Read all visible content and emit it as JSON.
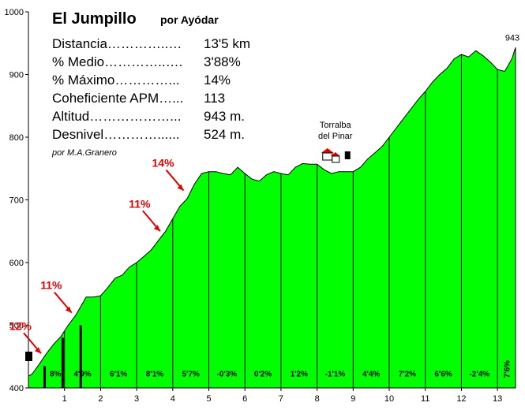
{
  "chart_data": {
    "type": "area",
    "title": "El Jumpillo",
    "subtitle": "por Ayódar",
    "author": "por M.A.Granero",
    "stats": [
      {
        "label": "Distancia…………..…",
        "value": "13'5 km"
      },
      {
        "label": "% Medio…………..…. ",
        "value": "3'88%"
      },
      {
        "label": "% Máximo…………...",
        "value": "14%"
      },
      {
        "label": "Coheficiente APM…...",
        "value": "113"
      },
      {
        "label": "Altitud………………...",
        "value": "943 m."
      },
      {
        "label": "Desnivel…………......",
        "value": "524 m."
      }
    ],
    "xlim": [
      0,
      13.5
    ],
    "ylim": [
      400,
      1000
    ],
    "x_ticks": [
      "1",
      "2",
      "3",
      "4",
      "5",
      "6",
      "7",
      "8",
      "9",
      "10",
      "11",
      "12",
      "13"
    ],
    "y_ticks": [
      "400",
      "500",
      "600",
      "700",
      "800",
      "900",
      "1000"
    ],
    "x": [
      0,
      0.1,
      0.3,
      0.5,
      0.7,
      0.9,
      1.1,
      1.3,
      1.5,
      1.6,
      1.8,
      2.0,
      2.2,
      2.4,
      2.6,
      2.8,
      3.0,
      3.2,
      3.4,
      3.6,
      3.8,
      4.0,
      4.2,
      4.4,
      4.6,
      4.8,
      5.0,
      5.2,
      5.4,
      5.6,
      5.8,
      6.0,
      6.2,
      6.4,
      6.6,
      6.8,
      7.0,
      7.2,
      7.4,
      7.6,
      7.8,
      8.0,
      8.2,
      8.4,
      8.6,
      8.8,
      9.0,
      9.2,
      9.4,
      9.6,
      9.8,
      10.0,
      10.2,
      10.4,
      10.6,
      10.8,
      11.0,
      11.2,
      11.4,
      11.6,
      11.8,
      12.0,
      12.2,
      12.4,
      12.6,
      12.8,
      13.0,
      13.2,
      13.4,
      13.5
    ],
    "y": [
      419,
      422,
      438,
      455,
      470,
      482,
      500,
      515,
      535,
      545,
      545,
      547,
      560,
      575,
      580,
      593,
      600,
      610,
      620,
      635,
      650,
      670,
      690,
      702,
      725,
      742,
      745,
      745,
      742,
      740,
      752,
      742,
      733,
      730,
      740,
      745,
      742,
      740,
      752,
      758,
      757,
      757,
      748,
      742,
      745,
      745,
      745,
      752,
      765,
      775,
      785,
      800,
      815,
      830,
      845,
      860,
      873,
      888,
      900,
      910,
      925,
      932,
      928,
      938,
      930,
      920,
      908,
      905,
      925,
      943
    ],
    "segments": [
      {
        "x": 0.5,
        "label": "8%"
      },
      {
        "x": 1.5,
        "label": "4'9%"
      },
      {
        "x": 2.5,
        "label": "6'1%"
      },
      {
        "x": 3.5,
        "label": "8'1%"
      },
      {
        "x": 4.5,
        "label": "5'7%"
      },
      {
        "x": 5.5,
        "label": "-0'3%"
      },
      {
        "x": 6.5,
        "label": "0'2%"
      },
      {
        "x": 7.5,
        "label": "1'2%"
      },
      {
        "x": 8.5,
        "label": "-1'1%"
      },
      {
        "x": 9.5,
        "label": "4'4%"
      },
      {
        "x": 10.5,
        "label": "7'2%"
      },
      {
        "x": 11.5,
        "label": "6'6%"
      },
      {
        "x": 12.5,
        "label": "-2'4%"
      },
      {
        "x": 13.25,
        "label": "7'6%"
      }
    ],
    "ramps": [
      {
        "label": "12%",
        "x": 0.35,
        "y": 455
      },
      {
        "label": "11%",
        "x": 1.2,
        "y": 520
      },
      {
        "label": "11%",
        "x": 3.65,
        "y": 650
      },
      {
        "label": "14%",
        "x": 4.3,
        "y": 715
      }
    ],
    "summit_label": "943",
    "place": {
      "line1": "Torralba",
      "line2": "del Pinar",
      "x": 8.55,
      "y": 745
    },
    "fill_color": "#00ff00",
    "arrow_color": "#e00000"
  }
}
